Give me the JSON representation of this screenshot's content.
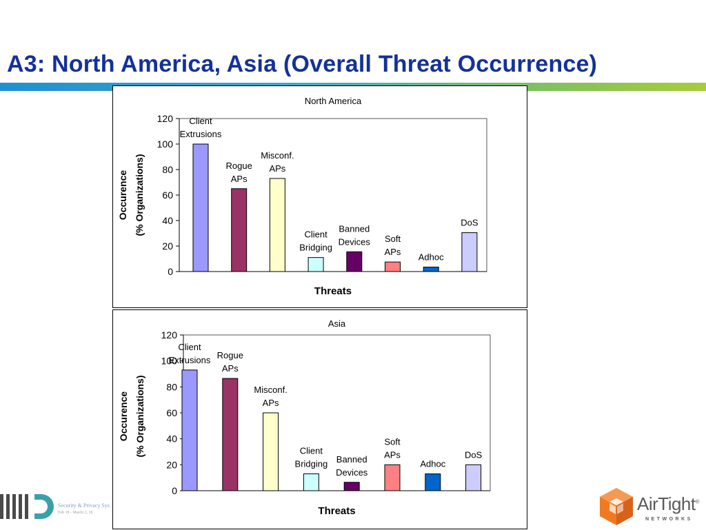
{
  "slide": {
    "title": "A3: North America, Asia (Overall Threat Occurrence)"
  },
  "footer": {
    "left_line1": "Security & Privacy Sys",
    "left_line2": "Feb 18 - March 2, 20",
    "brand_name": "AirTight",
    "brand_sub": "NETWORKS",
    "brand_mark": "®"
  },
  "colors": {
    "title": "#14319a",
    "client_extrusions": "#9999ff",
    "rogue_aps": "#993366",
    "misconf_aps": "#ffffcc",
    "client_bridging": "#ccffff",
    "banned_devices": "#660066",
    "soft_aps": "#ff8080",
    "adhoc": "#0066cc",
    "dos": "#ccccff",
    "airtight_orange": "#f07a22"
  },
  "chart_data": [
    {
      "type": "bar",
      "title": "North America",
      "xlabel": "Threats",
      "ylabel_lines": [
        "Occurence",
        "(% Organizations)"
      ],
      "ylim": [
        0,
        120
      ],
      "yticks": [
        0,
        20,
        40,
        60,
        80,
        100,
        120
      ],
      "grid": false,
      "legend": "none",
      "categories": [
        {
          "lines": [
            "Client",
            "Extrusions"
          ],
          "value": 100,
          "color": "#9999ff"
        },
        {
          "lines": [
            "Rogue",
            "APs"
          ],
          "value": 65,
          "color": "#993366"
        },
        {
          "lines": [
            "Misconf.",
            "APs"
          ],
          "value": 73,
          "color": "#ffffcc"
        },
        {
          "lines": [
            "Client",
            "Bridging"
          ],
          "value": 11,
          "color": "#ccffff"
        },
        {
          "lines": [
            "Banned",
            "Devices"
          ],
          "value": 15.5,
          "color": "#660066"
        },
        {
          "lines": [
            "Soft",
            "APs"
          ],
          "value": 7.5,
          "color": "#ff8080"
        },
        {
          "lines": [
            "Adhoc"
          ],
          "value": 3.5,
          "color": "#0066cc"
        },
        {
          "lines": [
            "DoS"
          ],
          "value": 30.5,
          "color": "#ccccff"
        }
      ]
    },
    {
      "type": "bar",
      "title": "Asia",
      "xlabel": "Threats",
      "ylabel_lines": [
        "Occurence",
        "(% Organizations)"
      ],
      "ylim": [
        0,
        120
      ],
      "yticks": [
        0,
        20,
        40,
        60,
        80,
        100,
        120
      ],
      "grid": false,
      "legend": "none",
      "categories": [
        {
          "lines": [
            "Client",
            "Extrusions"
          ],
          "value": 93,
          "color": "#9999ff"
        },
        {
          "lines": [
            "Rogue",
            "APs"
          ],
          "value": 86.5,
          "color": "#993366"
        },
        {
          "lines": [
            "Misconf.",
            "APs"
          ],
          "value": 60,
          "color": "#ffffcc"
        },
        {
          "lines": [
            "Client",
            "Bridging"
          ],
          "value": 13,
          "color": "#ccffff"
        },
        {
          "lines": [
            "Banned",
            "Devices"
          ],
          "value": 6.5,
          "color": "#660066"
        },
        {
          "lines": [
            "Soft",
            "APs"
          ],
          "value": 20,
          "color": "#ff8080"
        },
        {
          "lines": [
            "Adhoc"
          ],
          "value": 13,
          "color": "#0066cc"
        },
        {
          "lines": [
            "DoS"
          ],
          "value": 20,
          "color": "#ccccff"
        }
      ]
    }
  ]
}
